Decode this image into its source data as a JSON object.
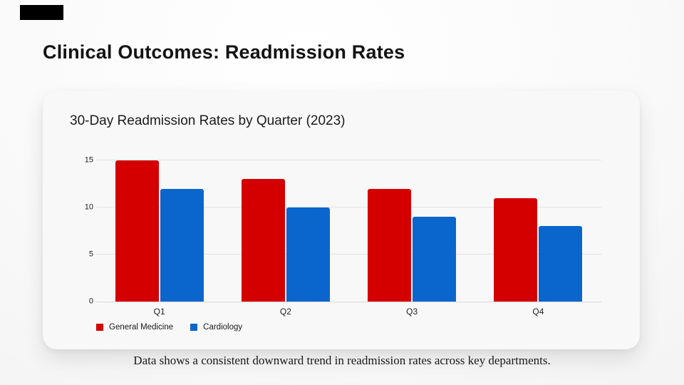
{
  "slide": {
    "title": "Clinical Outcomes: Readmission Rates",
    "footer_note": "Data shows a consistent downward trend in readmission rates across key departments."
  },
  "chart_card": {
    "title": "30-Day Readmission Rates by Quarter (2023)"
  },
  "chart_data": {
    "type": "bar",
    "title": "30-Day Readmission Rates by Quarter (2023)",
    "categories": [
      "Q1",
      "Q2",
      "Q3",
      "Q4"
    ],
    "series": [
      {
        "name": "General Medicine",
        "color": "#d40000",
        "values": [
          15,
          13,
          12,
          11
        ]
      },
      {
        "name": "Cardiology",
        "color": "#0a66cc",
        "values": [
          12,
          10,
          9,
          8
        ]
      }
    ],
    "xlabel": "",
    "ylabel": "",
    "ylim": [
      0,
      15
    ],
    "yticks": [
      0,
      5,
      10,
      15
    ],
    "grid": true,
    "legend_position": "bottom-left"
  },
  "decor": {
    "brand_block_color": "#000000",
    "gridline_color": "#e3e3e3",
    "card_background": "#f8f8f8"
  }
}
